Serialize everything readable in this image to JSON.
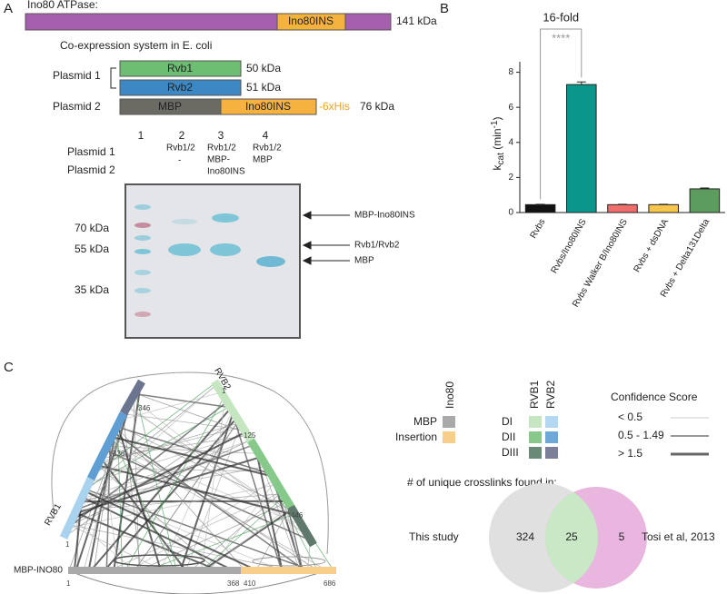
{
  "panel_labels": [
    "A",
    "B",
    "C"
  ],
  "panel_a": {
    "title": "Ino80 ATPase:",
    "ino80_domain": "Ino80INS",
    "ino80_size": "141 kDa",
    "system_title": "Co-expression system in E. coli",
    "plasmid1": "Plasmid 1",
    "plasmid2": "Plasmid 2",
    "constructs": [
      {
        "label": "Rvb1",
        "size": "50 kDa"
      },
      {
        "label": "Rvb2",
        "size": "51 kDa"
      }
    ],
    "fusion": {
      "parts": [
        "MBP",
        "Ino80INS"
      ],
      "tag": "-6xHis",
      "size": "76 kDa"
    },
    "gel": {
      "row_labels": [
        "Plasmid 1",
        "Plasmid 2"
      ],
      "lanes": [
        {
          "number": "1"
        },
        {
          "number": "2",
          "plasmid1": "Rvb1/2",
          "plasmid2": [
            "-"
          ]
        },
        {
          "number": "3",
          "plasmid1": "Rvb1/2",
          "plasmid2": [
            "MBP-",
            "Ino80INS"
          ]
        },
        {
          "number": "4",
          "plasmid1": "Rvb1/2",
          "plasmid2": [
            "MBP"
          ]
        }
      ],
      "markers": [
        "70 kDa",
        "55 kDa",
        "35 kDa"
      ],
      "arrows": [
        "MBP-Ino80INS",
        "Rvb1/Rvb2",
        "MBP"
      ]
    }
  },
  "chart_data": {
    "type": "bar",
    "annotation": "16-fold",
    "significance": "****",
    "y_label": [
      "k",
      "cat",
      " (min",
      "-1",
      ")"
    ],
    "categories": [
      "Rvbs",
      "Rvbs/Ino80INS",
      "Rvbs Walker B/Ino80INS",
      "Rvbs + dsDNA",
      "Rvbs + Delta131Delta"
    ],
    "values": [
      0.45,
      7.3,
      0.45,
      0.45,
      1.35
    ],
    "errors": [
      0.02,
      0.15,
      0.02,
      0.02,
      0.05
    ],
    "colors": [
      "#111111",
      "#0b968c",
      "#ee6e6e",
      "#f6c64a",
      "#5c9c5e"
    ],
    "ylim": [
      0,
      8.6
    ],
    "yticks": [
      0,
      2,
      4,
      6,
      8
    ]
  },
  "panel_c": {
    "network": {
      "rvb2": {
        "name": "RVB2",
        "start": "1"
      },
      "rvb1": {
        "name": "RVB1",
        "start": "1"
      },
      "ino80": {
        "name": "MBP-INO80",
        "ticks": [
          "1",
          "368",
          "410",
          "686"
        ]
      },
      "residues": [
        "346",
        "336",
        "125",
        "446"
      ]
    },
    "legend": {
      "ino80_header": "Ino80",
      "ino80_items": [
        "MBP",
        "Insertion"
      ],
      "rvb_headers": [
        "RVB1",
        "RVB2"
      ],
      "domains": [
        "DI",
        "DII",
        "DIII"
      ],
      "confidence_title": "Confidence Score",
      "confidence_levels": [
        "< 0.5",
        "0.5 - 1.49",
        "> 1.5"
      ]
    },
    "venn": {
      "title": "# of unique crosslinks found in:",
      "left": "This study",
      "right": "Tosi et al, 2013",
      "counts": [
        324,
        25,
        5
      ]
    }
  }
}
